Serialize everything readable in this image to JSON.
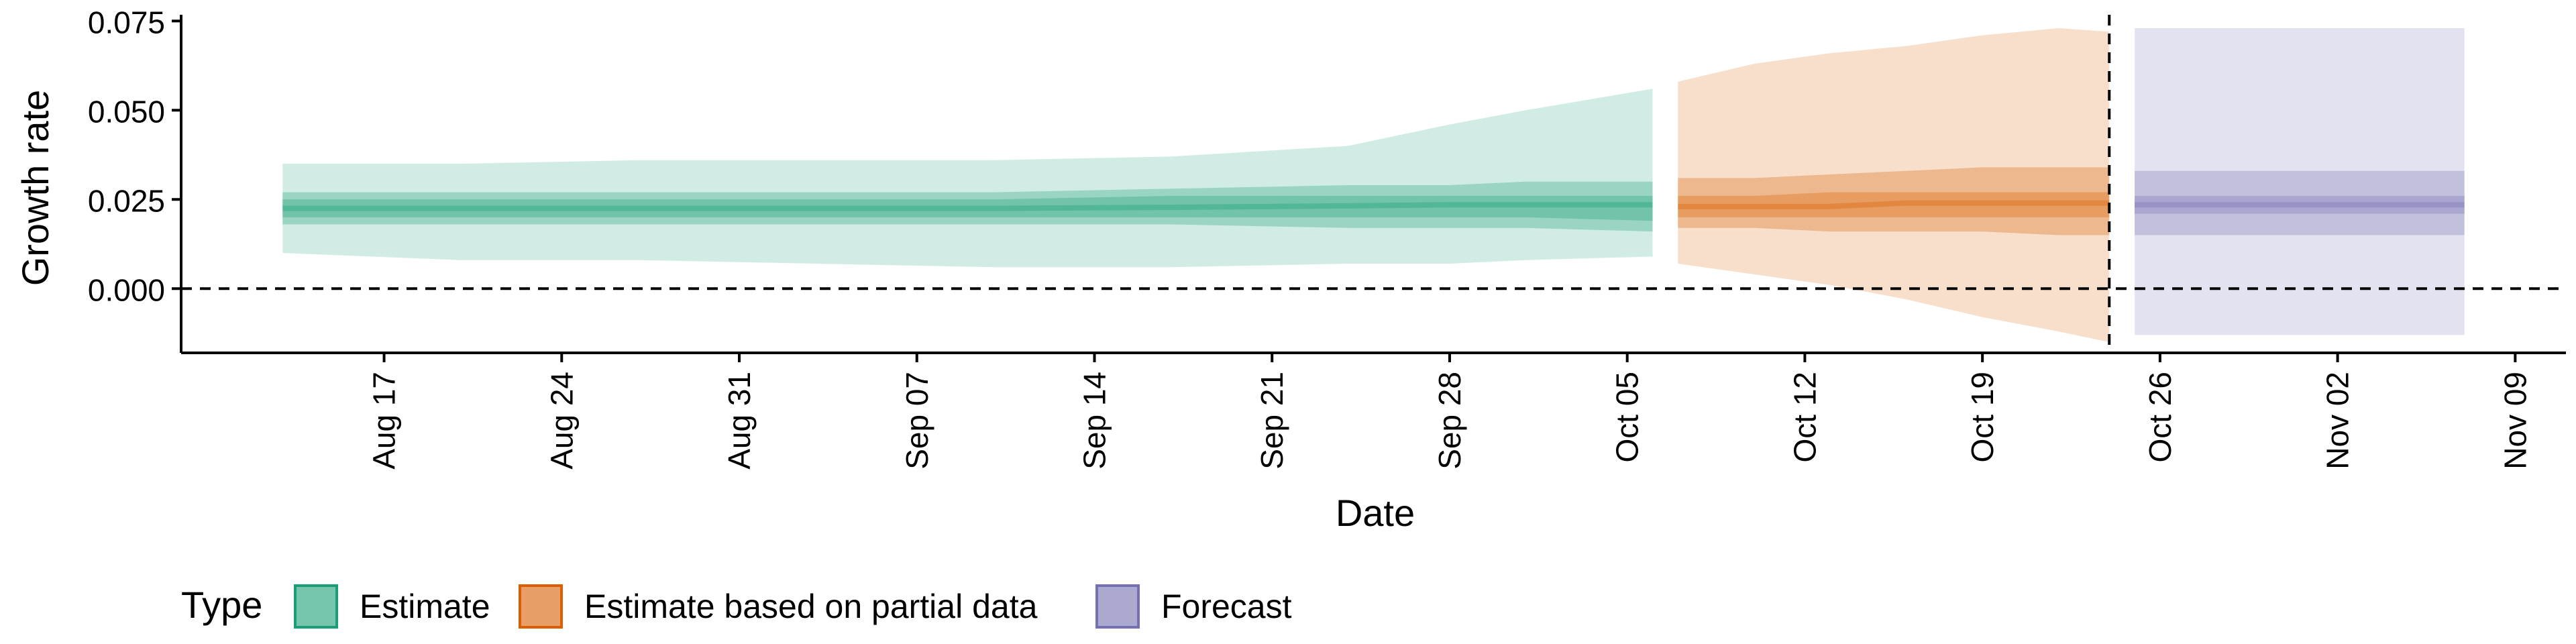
{
  "chart_data": {
    "type": "area",
    "title": "",
    "xlabel": "Date",
    "ylabel": "Growth rate",
    "x_type": "date",
    "xlim": [
      "2021-08-09",
      "2021-11-11"
    ],
    "ylim": [
      -0.018,
      0.076
    ],
    "x_ticks": [
      {
        "date": "2021-08-17",
        "label": "Aug 17"
      },
      {
        "date": "2021-08-24",
        "label": "Aug 24"
      },
      {
        "date": "2021-08-31",
        "label": "Aug 31"
      },
      {
        "date": "2021-09-07",
        "label": "Sep 07"
      },
      {
        "date": "2021-09-14",
        "label": "Sep 14"
      },
      {
        "date": "2021-09-21",
        "label": "Sep 21"
      },
      {
        "date": "2021-09-28",
        "label": "Sep 28"
      },
      {
        "date": "2021-10-05",
        "label": "Oct 05"
      },
      {
        "date": "2021-10-12",
        "label": "Oct 12"
      },
      {
        "date": "2021-10-19",
        "label": "Oct 19"
      },
      {
        "date": "2021-10-26",
        "label": "Oct 26"
      },
      {
        "date": "2021-11-02",
        "label": "Nov 02"
      },
      {
        "date": "2021-11-09",
        "label": "Nov 09"
      }
    ],
    "y_ticks": [
      {
        "value": 0.0,
        "label": "0.000"
      },
      {
        "value": 0.025,
        "label": "0.025"
      },
      {
        "value": 0.05,
        "label": "0.050"
      },
      {
        "value": 0.075,
        "label": "0.075"
      }
    ],
    "grid": false,
    "legend": {
      "position": "bottom-left",
      "title": "Type"
    },
    "reference_lines": [
      {
        "orientation": "horizontal",
        "y": 0.0,
        "style": "dashed"
      },
      {
        "orientation": "vertical",
        "x": "2021-10-24",
        "style": "dashed"
      }
    ],
    "series": [
      {
        "name": "Estimate",
        "color": "#1b9e77",
        "x": [
          "2021-08-13",
          "2021-08-20",
          "2021-08-27",
          "2021-09-03",
          "2021-09-10",
          "2021-09-17",
          "2021-09-24",
          "2021-09-28",
          "2021-10-01",
          "2021-10-06"
        ],
        "median": [
          0.0225,
          0.0225,
          0.0225,
          0.0225,
          0.0225,
          0.0228,
          0.0232,
          0.0235,
          0.0235,
          0.0235
        ],
        "inner_low": [
          0.02,
          0.02,
          0.02,
          0.02,
          0.02,
          0.02,
          0.02,
          0.02,
          0.02,
          0.019
        ],
        "inner_high": [
          0.025,
          0.025,
          0.025,
          0.025,
          0.025,
          0.026,
          0.026,
          0.026,
          0.026,
          0.026
        ],
        "mid_low": [
          0.018,
          0.018,
          0.018,
          0.018,
          0.018,
          0.018,
          0.017,
          0.017,
          0.017,
          0.016
        ],
        "mid_high": [
          0.027,
          0.027,
          0.027,
          0.027,
          0.027,
          0.028,
          0.029,
          0.029,
          0.03,
          0.03
        ],
        "outer_low": [
          0.01,
          0.008,
          0.008,
          0.007,
          0.006,
          0.006,
          0.007,
          0.007,
          0.008,
          0.009
        ],
        "outer_high": [
          0.035,
          0.035,
          0.036,
          0.036,
          0.036,
          0.037,
          0.04,
          0.046,
          0.05,
          0.056
        ]
      },
      {
        "name": "Estimate based on partial data",
        "color": "#d95f02",
        "x": [
          "2021-10-07",
          "2021-10-10",
          "2021-10-13",
          "2021-10-16",
          "2021-10-19",
          "2021-10-22",
          "2021-10-24"
        ],
        "median": [
          0.023,
          0.023,
          0.023,
          0.024,
          0.024,
          0.024,
          0.024
        ],
        "inner_low": [
          0.02,
          0.02,
          0.02,
          0.02,
          0.02,
          0.02,
          0.02
        ],
        "inner_high": [
          0.026,
          0.026,
          0.027,
          0.027,
          0.027,
          0.027,
          0.027
        ],
        "mid_low": [
          0.017,
          0.017,
          0.016,
          0.016,
          0.016,
          0.015,
          0.015
        ],
        "mid_high": [
          0.031,
          0.031,
          0.032,
          0.033,
          0.034,
          0.034,
          0.034
        ],
        "outer_low": [
          0.007,
          0.004,
          0.001,
          -0.003,
          -0.008,
          -0.012,
          -0.015
        ],
        "outer_high": [
          0.058,
          0.063,
          0.066,
          0.068,
          0.071,
          0.073,
          0.072
        ]
      },
      {
        "name": "Forecast",
        "color": "#7570b3",
        "x": [
          "2021-10-25",
          "2021-11-07"
        ],
        "median": [
          0.0235,
          0.0235
        ],
        "inner_low": [
          0.021,
          0.021
        ],
        "inner_high": [
          0.026,
          0.026
        ],
        "mid_low": [
          0.015,
          0.015
        ],
        "mid_high": [
          0.033,
          0.033
        ],
        "outer_low": [
          -0.013,
          -0.013
        ],
        "outer_high": [
          0.073,
          0.073
        ]
      }
    ]
  }
}
